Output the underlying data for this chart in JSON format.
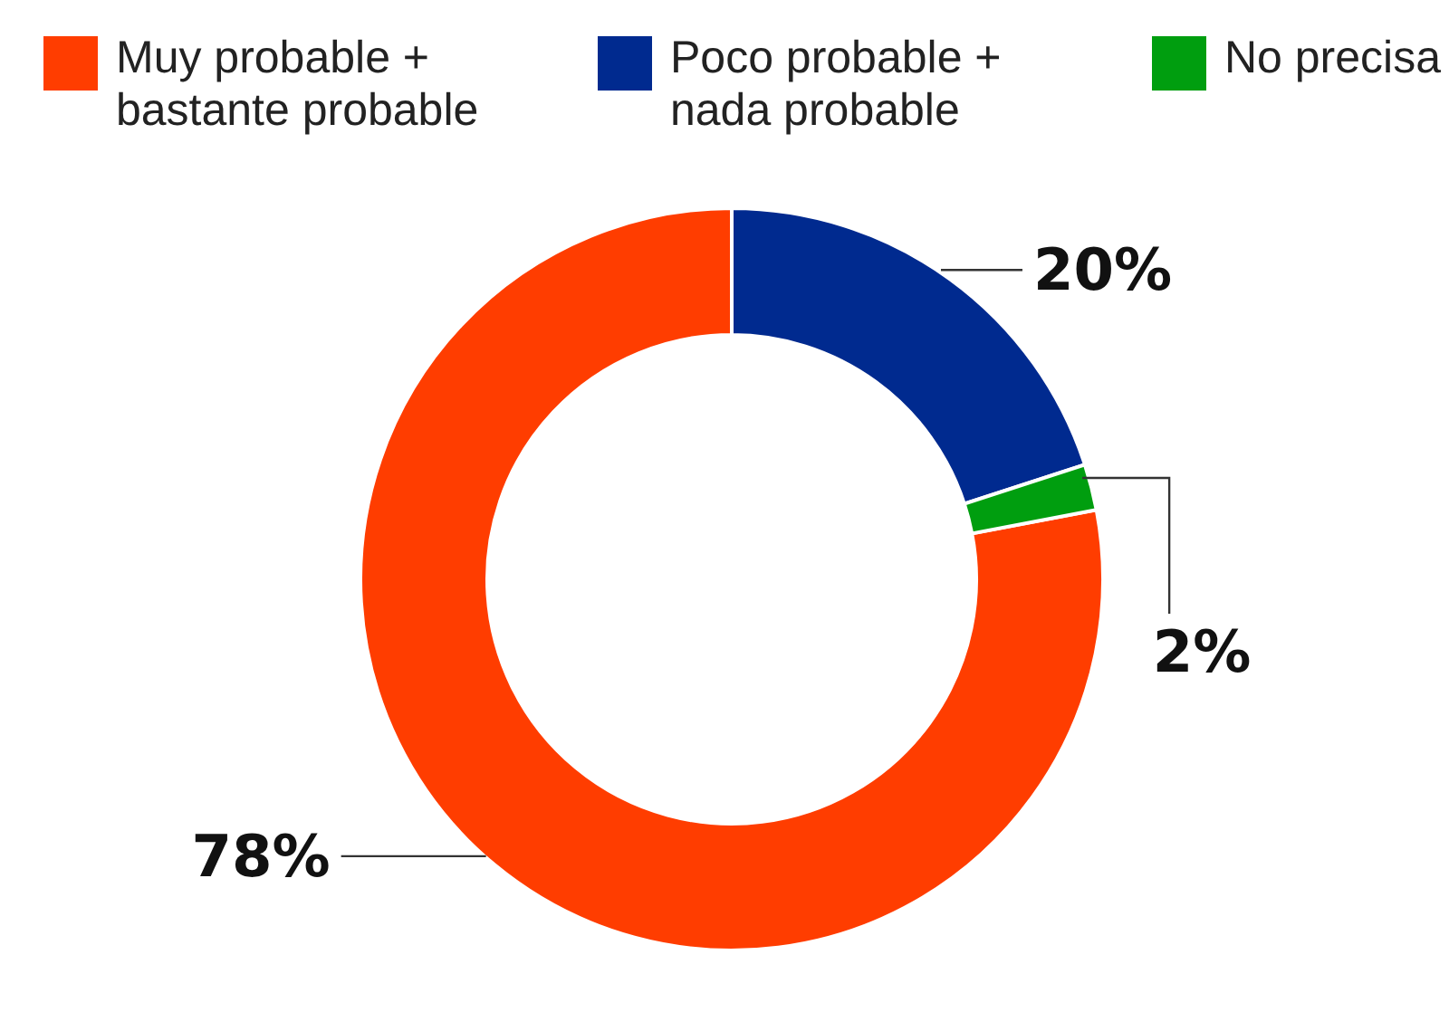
{
  "chart_data": {
    "type": "donut",
    "categories": [
      "Muy probable + bastante probable",
      "Poco probable + nada probable",
      "No precisa"
    ],
    "values": [
      78,
      20,
      2
    ],
    "colors": [
      "#ff3d00",
      "#002a8f",
      "#009e0f"
    ],
    "value_labels": [
      "78%",
      "20%",
      "2%"
    ],
    "legend": "top"
  }
}
